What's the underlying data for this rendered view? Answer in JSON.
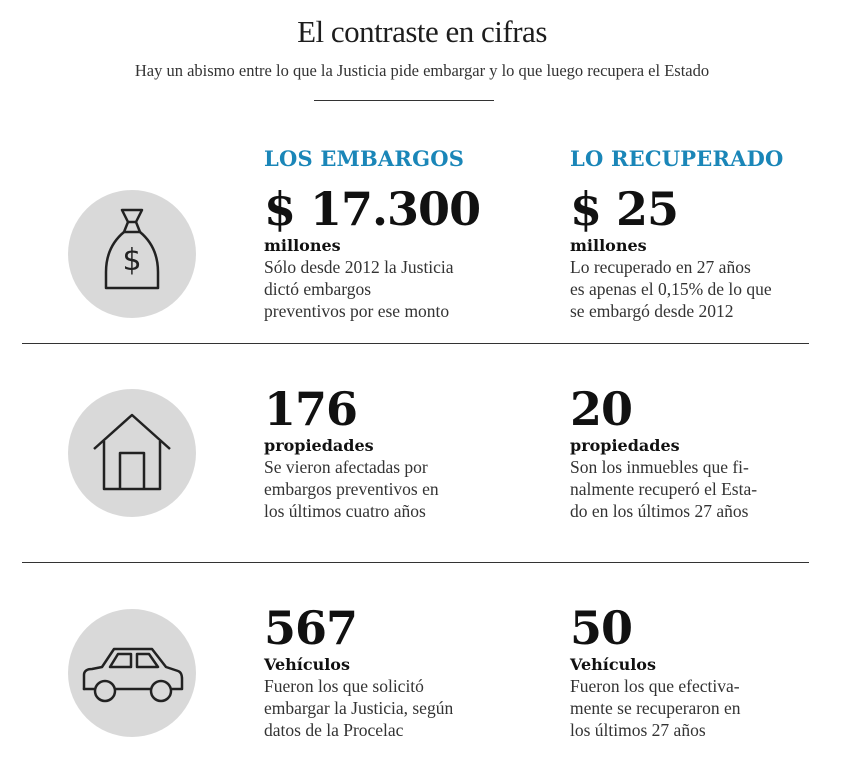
{
  "header": {
    "title": "El contraste en cifras",
    "subtitle": "Hay un abismo entre lo que  la Justicia pide embargar y lo que luego recupera el Estado"
  },
  "columns": {
    "left": "LOS EMBARGOS",
    "right": "LO RECUPERADO"
  },
  "accent_color": "#1a86b8",
  "rows": [
    {
      "icon": "money-bag-icon",
      "left": {
        "value": "$ 17.300",
        "unit": "millones",
        "desc": [
          "Sólo desde 2012 la Justicia",
          "dictó embargos",
          "preventivos por ese monto"
        ]
      },
      "right": {
        "value": "$ 25",
        "unit": "millones",
        "desc": [
          "Lo recuperado en 27 años",
          "es apenas el 0,15% de lo que",
          "se embargó desde 2012"
        ]
      }
    },
    {
      "icon": "house-icon",
      "left": {
        "value": "176",
        "unit": "propiedades",
        "desc": [
          "Se vieron afectadas por",
          "embargos preventivos en",
          "los últimos cuatro años"
        ]
      },
      "right": {
        "value": "20",
        "unit": "propiedades",
        "desc": [
          "Son los inmuebles que fi-",
          "nalmente recuperó el Esta-",
          "do en los últimos 27 años"
        ]
      }
    },
    {
      "icon": "car-icon",
      "left": {
        "value": "567",
        "unit": "Vehículos",
        "desc": [
          "Fueron los que solicitó",
          "embargar la Justicia, según",
          "datos de la Procelac"
        ]
      },
      "right": {
        "value": "50",
        "unit": "Vehículos",
        "desc": [
          "Fueron los que efectiva-",
          "mente se recuperaron en",
          "los últimos 27 años"
        ]
      }
    }
  ]
}
